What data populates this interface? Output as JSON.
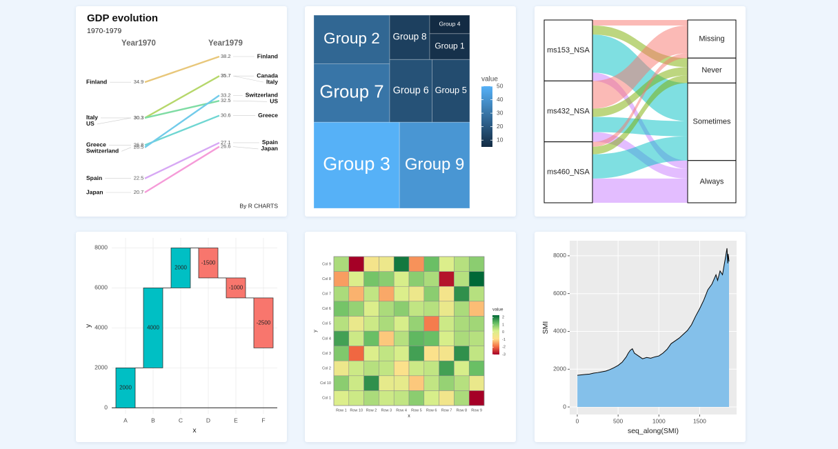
{
  "chart_data": [
    {
      "type": "slope",
      "title": "GDP evolution",
      "subtitle": "1970-1979",
      "categories": [
        "Year1970",
        "Year1979"
      ],
      "caption": "By R CHARTS",
      "series": [
        {
          "name": "Finland",
          "color": "#e8c77a",
          "values": [
            34.9,
            38.2
          ]
        },
        {
          "name": "Canada",
          "values": [
            null,
            35.7
          ]
        },
        {
          "name": "Italy",
          "color": "#b6d76b",
          "values": [
            30.3,
            35.7
          ]
        },
        {
          "name": "US",
          "color": "#7fdca4",
          "values": [
            30.3,
            32.5
          ]
        },
        {
          "name": "Greece",
          "color": "#6fd6d2",
          "values": [
            26.8,
            30.6
          ]
        },
        {
          "name": "Switzerland",
          "color": "#72cbea",
          "values": [
            26.5,
            33.2
          ]
        },
        {
          "name": "Spain",
          "color": "#d7a8f4",
          "values": [
            22.5,
            27.1
          ]
        },
        {
          "name": "Japan",
          "color": "#f59bd8",
          "values": [
            20.7,
            26.6
          ]
        }
      ]
    },
    {
      "type": "treemap",
      "categories": [
        "Group 9",
        "Group 3",
        "Group 5",
        "Group 6",
        "Group 7",
        "Group 2",
        "Group 4",
        "Group 1",
        "Group 8"
      ],
      "values": [
        41,
        50,
        16,
        18,
        30,
        25,
        5,
        7,
        12
      ],
      "colors": [
        "#132b43",
        "#56b1f7"
      ],
      "legend_title": "value",
      "colorbar_ticks": [
        10,
        20,
        30,
        40,
        50
      ]
    },
    {
      "type": "alluvial",
      "categories": [
        "ms153_NSA",
        "ms432_NSA",
        "ms460_NSA"
      ],
      "series": [
        {
          "name": "Missing",
          "color": "#f8766d",
          "values": [
            8,
            40,
            7
          ]
        },
        {
          "name": "Never",
          "color": "#7cae00",
          "values": [
            13,
            12,
            11
          ]
        },
        {
          "name": "Sometimes",
          "color": "#00bfc4",
          "values": [
            55,
            22,
            35
          ]
        },
        {
          "name": "Always",
          "color": "#c77cff",
          "values": [
            12,
            14,
            35
          ]
        }
      ]
    },
    {
      "type": "waterfall",
      "categories": [
        "A",
        "B",
        "C",
        "D",
        "E",
        "F"
      ],
      "values": [
        2000,
        4000,
        2000,
        -1500,
        -1000,
        -2500
      ],
      "colors": {
        "positive": "#00bfc4",
        "negative": "#f8766d"
      },
      "ylim": [
        -300,
        8500
      ],
      "yticks": [
        0,
        2000,
        4000,
        6000,
        8000
      ],
      "xlabel": "x",
      "ylabel": "y",
      "grid": true
    },
    {
      "type": "heatmap",
      "x": [
        "Row 1",
        "Row 10",
        "Row 2",
        "Row 3",
        "Row 4",
        "Row 5",
        "Row 6",
        "Row 7",
        "Row 8",
        "Row 9"
      ],
      "y": [
        "Col 1",
        "Col 10",
        "Col 2",
        "Col 3",
        "Col 4",
        "Col 5",
        "Col 6",
        "Col 7",
        "Col 8",
        "Col 9"
      ],
      "values": [
        [
          0.1,
          0.3,
          0.6,
          0.3,
          0.4,
          0.9,
          0.2,
          -0.5,
          0.6,
          -3.0
        ],
        [
          0.9,
          0.3,
          1.8,
          -0.2,
          -0.2,
          -1.1,
          0.4,
          0.8,
          0.5,
          -0.3
        ],
        [
          -0.4,
          0.3,
          0.5,
          0.4,
          -0.8,
          0.3,
          0.4,
          1.6,
          0.2,
          1.2
        ],
        [
          1.0,
          -2.0,
          0.1,
          0.4,
          0.2,
          1.6,
          -0.8,
          -0.6,
          1.8,
          0.4
        ],
        [
          1.6,
          0.3,
          1.2,
          -1.1,
          0.5,
          1.3,
          1.2,
          0.2,
          0.6,
          0.5
        ],
        [
          0.5,
          -0.3,
          0.3,
          0.6,
          0.2,
          0.8,
          -1.8,
          0.3,
          0.6,
          0.7
        ],
        [
          1.1,
          0.8,
          0.1,
          0.6,
          0.9,
          0.4,
          0.5,
          -0.3,
          0.6,
          -1.2
        ],
        [
          0.6,
          -1.3,
          0.4,
          -1.4,
          0.1,
          -0.4,
          0.9,
          -0.6,
          1.8,
          0.5
        ],
        [
          -1.5,
          0.1,
          1.1,
          0.9,
          0.2,
          0.9,
          0.6,
          -2.8,
          0.5,
          2.3
        ],
        [
          0.6,
          -3.0,
          -0.6,
          -0.4,
          2.1,
          -1.6,
          1.2,
          0.1,
          0.5,
          0.9
        ]
      ],
      "colors": [
        "#a50026",
        "#f46d43",
        "#fee08b",
        "#d9ef8b",
        "#66bd63",
        "#006837"
      ],
      "legend_title": "value",
      "colorbar_ticks": [
        2,
        1,
        0,
        -1,
        -2,
        -3
      ],
      "xlabel": "x",
      "ylabel": "y"
    },
    {
      "type": "area",
      "x": [
        1,
        50,
        100,
        150,
        200,
        250,
        300,
        350,
        400,
        450,
        500,
        550,
        600,
        625,
        650,
        675,
        700,
        750,
        800,
        850,
        900,
        950,
        1000,
        1050,
        1100,
        1150,
        1200,
        1250,
        1300,
        1350,
        1400,
        1450,
        1500,
        1550,
        1600,
        1650,
        1700,
        1720,
        1750,
        1780,
        1800,
        1820,
        1835,
        1845,
        1850,
        1860
      ],
      "values": [
        1678,
        1700,
        1720,
        1740,
        1790,
        1820,
        1860,
        1900,
        1980,
        2080,
        2200,
        2370,
        2650,
        2850,
        3000,
        3080,
        2850,
        2700,
        2550,
        2620,
        2580,
        2650,
        2700,
        2850,
        3050,
        3350,
        3500,
        3650,
        3850,
        4050,
        4350,
        4800,
        5200,
        5650,
        6200,
        6500,
        7000,
        6700,
        7200,
        7000,
        7500,
        8000,
        8400,
        7600,
        8100,
        7700
      ],
      "color": "#84c0ea",
      "line_color": "#000000",
      "xlim": [
        -93,
        1953
      ],
      "ylim": [
        -400,
        8800
      ],
      "xticks": [
        0,
        500,
        1000,
        1500
      ],
      "yticks": [
        0,
        2000,
        4000,
        6000,
        8000
      ],
      "xlabel": "seq_along(SMI)",
      "ylabel": "SMI",
      "grid": true
    }
  ]
}
